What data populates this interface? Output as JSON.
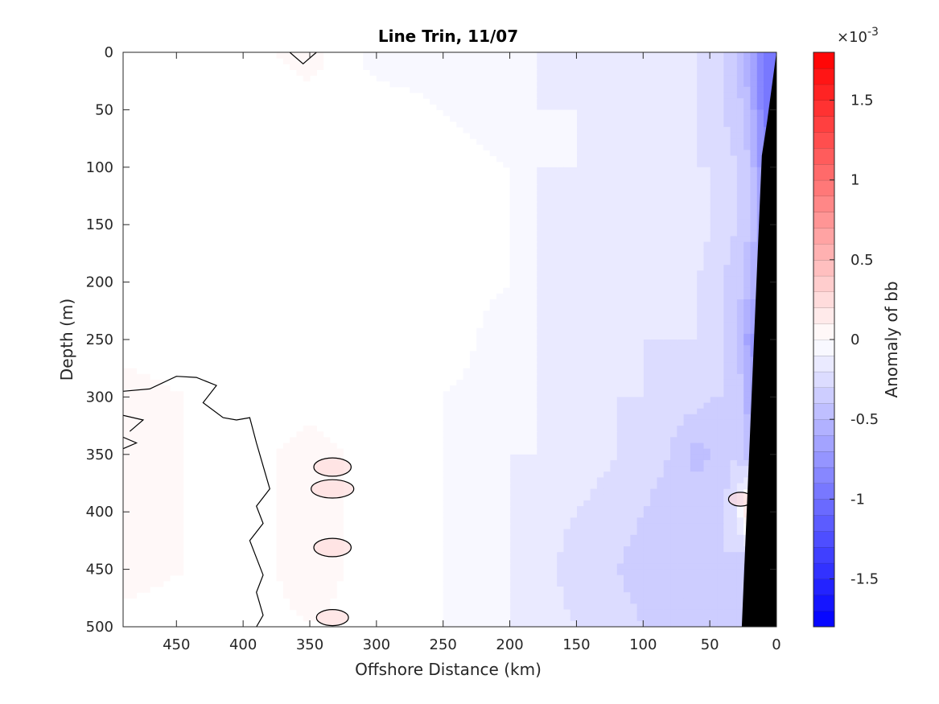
{
  "chart_data": {
    "type": "heatmap",
    "subtype": "filled-contour section",
    "title": "Line Trin, 11/07",
    "xlabel": "Offshore Distance (km)",
    "ylabel": "Depth (m)",
    "xlim": [
      490,
      0
    ],
    "x_reversed": true,
    "ylim": [
      0,
      500
    ],
    "y_reversed": true,
    "xticks": [
      450,
      400,
      350,
      300,
      250,
      200,
      150,
      100,
      50,
      0
    ],
    "yticks": [
      0,
      50,
      100,
      150,
      200,
      250,
      300,
      350,
      400,
      450,
      500
    ],
    "colorbar": {
      "label": "Anomaly of bb",
      "exponent_label": "×10",
      "exponent": "-3",
      "range": [
        -0.0018,
        0.0018
      ],
      "ticks": [
        1.5,
        1,
        0.5,
        0,
        -0.5,
        -1,
        -1.5
      ],
      "levels": 36,
      "colormap": "blue-white-red",
      "low_color": "#0000ff",
      "mid_color": "#ffffff",
      "high_color": "#ff0000"
    },
    "bathymetry_mask": {
      "color": "#000000",
      "boundary": [
        [
          0,
          0
        ],
        [
          7,
          60
        ],
        [
          11,
          90
        ],
        [
          26,
          500
        ]
      ]
    },
    "zero_contour_color": "#000000",
    "anomaly_field": {
      "units": "bb (x10^-3)",
      "distance_columns_km": [
        0,
        10,
        20,
        30,
        40,
        50,
        60,
        80,
        100,
        120,
        150,
        180,
        200,
        250,
        300,
        350,
        400,
        490
      ],
      "depth_rows_m": [
        0,
        50,
        100,
        150,
        200,
        250,
        300,
        350,
        400,
        450,
        500
      ],
      "values": [
        [
          -1.0,
          -0.9,
          -0.6,
          -0.4,
          -0.3,
          -0.25,
          -0.2,
          -0.2,
          -0.15,
          -0.15,
          -0.15,
          -0.1,
          -0.1,
          -0.1,
          -0.1,
          0.1,
          0.0,
          0.0
        ],
        [
          -1.0,
          -0.9,
          -0.5,
          -0.35,
          -0.3,
          -0.25,
          -0.2,
          -0.2,
          -0.15,
          -0.15,
          -0.1,
          -0.1,
          -0.1,
          -0.05,
          0.0,
          0.0,
          0.0,
          0.0
        ],
        [
          -1.0,
          -0.8,
          -0.4,
          -0.3,
          -0.25,
          -0.2,
          -0.2,
          -0.15,
          -0.15,
          -0.15,
          -0.1,
          -0.1,
          -0.05,
          0.0,
          0.0,
          0.0,
          0.0,
          0.0
        ],
        [
          -1.0,
          -0.7,
          -0.4,
          -0.3,
          -0.25,
          -0.2,
          -0.15,
          -0.2,
          -0.2,
          -0.15,
          -0.15,
          -0.1,
          -0.05,
          0.0,
          0.0,
          0.0,
          0.0,
          0.0
        ],
        [
          -1.0,
          -0.7,
          -0.5,
          -0.35,
          -0.3,
          -0.25,
          -0.2,
          -0.2,
          -0.2,
          -0.2,
          -0.15,
          -0.1,
          -0.05,
          0.0,
          0.0,
          0.0,
          0.0,
          0.0
        ],
        [
          -1.0,
          -0.8,
          -0.7,
          -0.35,
          -0.3,
          -0.25,
          -0.2,
          -0.2,
          -0.2,
          -0.2,
          -0.15,
          -0.1,
          -0.1,
          0.0,
          0.0,
          0.0,
          0.0,
          0.0
        ],
        [
          -1.0,
          -0.8,
          -0.6,
          -0.3,
          -0.3,
          -0.3,
          -0.25,
          -0.25,
          -0.2,
          -0.2,
          -0.15,
          -0.1,
          -0.1,
          -0.05,
          0.0,
          0.0,
          0.0,
          0.1
        ],
        [
          -1.0,
          -0.8,
          -0.5,
          -0.3,
          -0.35,
          -0.4,
          -0.45,
          -0.3,
          -0.25,
          -0.2,
          -0.15,
          -0.1,
          -0.1,
          -0.05,
          0.0,
          0.1,
          0.0,
          0.1
        ],
        [
          -1.0,
          -0.8,
          0.3,
          -0.2,
          -0.3,
          -0.3,
          -0.3,
          -0.35,
          -0.3,
          -0.25,
          -0.2,
          -0.15,
          -0.1,
          -0.05,
          0.0,
          0.1,
          0.0,
          0.1
        ],
        [
          -1.0,
          -0.8,
          -0.5,
          -0.35,
          -0.3,
          -0.3,
          -0.3,
          -0.35,
          -0.35,
          -0.3,
          -0.25,
          -0.15,
          -0.1,
          -0.05,
          0.0,
          0.1,
          0.0,
          0.1
        ],
        [
          -1.0,
          -0.8,
          -0.5,
          -0.35,
          -0.3,
          -0.3,
          -0.3,
          -0.3,
          -0.3,
          -0.25,
          -0.2,
          -0.15,
          -0.1,
          -0.05,
          0.0,
          0.05,
          0.0,
          0.0
        ]
      ]
    }
  }
}
